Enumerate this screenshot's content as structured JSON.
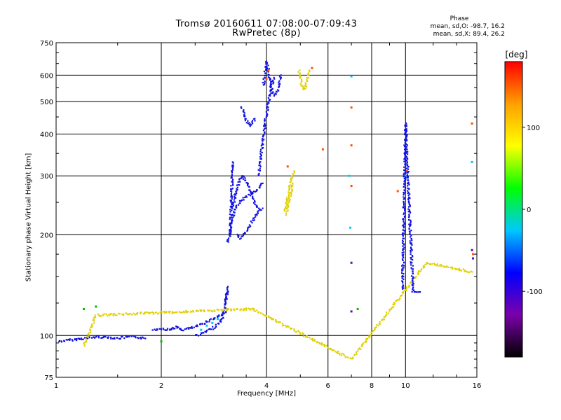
{
  "chart_data": {
    "type": "scatter",
    "title": "Tromsø 20160611 07:08:00-07:09:43",
    "subtitle": "RwPretec (8p)",
    "stats": {
      "header": "Phase",
      "line_o": "mean, sd,O: -98.7, 16.2",
      "line_x": "mean, sd,X:  89.4, 26.2"
    },
    "xlabel": "Frequency [MHz]",
    "ylabel": "Stationary phase Virtual Height [km]",
    "x_scale": "log",
    "y_scale": "log",
    "xlim": [
      1,
      16
    ],
    "ylim": [
      75,
      750
    ],
    "x_ticks": [
      1,
      2,
      4,
      6,
      8,
      10,
      16
    ],
    "x_ticklabels": [
      "1",
      "2",
      "4",
      "6",
      "8",
      "10",
      "16"
    ],
    "y_ticks": [
      75,
      100,
      200,
      300,
      400,
      500,
      600,
      750
    ],
    "y_ticklabels": [
      "75",
      "100",
      "200",
      "300",
      "400",
      "500",
      "600",
      "750"
    ],
    "grid": true,
    "colorbar": {
      "title": "[deg]",
      "range": [
        -180,
        180
      ],
      "ticks": [
        100,
        0,
        -100
      ],
      "ticklabels": [
        "100",
        "0",
        "-100"
      ],
      "colormap": [
        "#000000",
        "#7b00aa",
        "#0000ff",
        "#00c8ff",
        "#00ff00",
        "#ffff00",
        "#ffa000",
        "#ff0000"
      ]
    },
    "series": [
      {
        "color": "#1010e0",
        "segments": [
          {
            "x": [
              1.02,
              1.1,
              1.2,
              1.3,
              1.4,
              1.5,
              1.6,
              1.7,
              1.8
            ],
            "y": [
              96,
              97,
              98,
              99,
              99,
              98,
              99,
              99,
              98
            ]
          },
          {
            "x": [
              1.9,
              2.0,
              2.1,
              2.2,
              2.3,
              2.4,
              2.5,
              2.6,
              2.7,
              2.8,
              2.9,
              3.0,
              3.1
            ],
            "y": [
              104,
              105,
              104,
              106,
              104,
              105,
              106,
              108,
              110,
              112,
              114,
              116,
              120
            ]
          },
          {
            "x": [
              2.5,
              2.6,
              2.7,
              2.8,
              2.9,
              3.0,
              3.05,
              3.1
            ],
            "y": [
              100,
              101,
              103,
              105,
              108,
              112,
              125,
              135
            ]
          },
          {
            "x": [
              3.1,
              3.15,
              3.2,
              3.3,
              3.4,
              3.5,
              3.6,
              3.7,
              3.8,
              3.9
            ],
            "y": [
              190,
              205,
              225,
              245,
              255,
              260,
              265,
              270,
              275,
              285
            ]
          },
          {
            "x": [
              3.2,
              3.25,
              3.3,
              3.4,
              3.5,
              3.6,
              3.7,
              3.8
            ],
            "y": [
              240,
              260,
              280,
              300,
              290,
              270,
              250,
              240
            ]
          },
          {
            "x": [
              3.3,
              3.35,
              3.4,
              3.5,
              3.6,
              3.7,
              3.8,
              3.9
            ],
            "y": [
              200,
              195,
              198,
              205,
              215,
              225,
              235,
              240
            ]
          },
          {
            "x": [
              3.8,
              3.85,
              3.9,
              3.95,
              4.0,
              4.05,
              4.1,
              4.15,
              4.2
            ],
            "y": [
              300,
              340,
              380,
              420,
              460,
              500,
              530,
              560,
              590
            ]
          },
          {
            "x": [
              3.92,
              3.95,
              3.98,
              4.0,
              4.05,
              4.1,
              4.2,
              4.3,
              4.4
            ],
            "y": [
              560,
              600,
              640,
              660,
              620,
              560,
              520,
              540,
              600
            ]
          },
          {
            "x": [
              3.4,
              3.5,
              3.6,
              3.65,
              3.7
            ],
            "y": [
              480,
              440,
              425,
              430,
              445
            ]
          },
          {
            "x": [
              3.15,
              3.2
            ],
            "y": [
              200,
              330
            ]
          },
          {
            "x": [
              3.05,
              3.1
            ],
            "y": [
              125,
              140
            ]
          }
        ]
      },
      {
        "color": "#00c8ff",
        "segments": [
          {
            "x": [
              2.6,
              2.7,
              2.8,
              2.9
            ],
            "y": [
              104,
              107,
              109,
              112
            ]
          },
          {
            "x": [
              6.9,
              6.95,
              7.0
            ],
            "y": [
              300,
              210,
              595
            ]
          },
          {
            "x": [
              10.0,
              15.5
            ],
            "y": [
              300,
              330
            ]
          }
        ]
      },
      {
        "color": "#e0d000",
        "segments": [
          {
            "x": [
              4.5,
              4.55,
              4.6,
              4.65,
              4.7,
              4.75,
              4.8
            ],
            "y": [
              235,
              245,
              260,
              275,
              290,
              300,
              310
            ]
          },
          {
            "x": [
              4.55,
              4.6,
              4.65,
              4.7,
              4.75
            ],
            "y": [
              230,
              240,
              255,
              270,
              285
            ]
          },
          {
            "x": [
              4.95,
              5.0,
              5.05,
              5.1,
              5.15,
              5.2,
              5.25,
              5.3
            ],
            "y": [
              620,
              590,
              560,
              545,
              550,
              565,
              590,
              620
            ]
          },
          {
            "x": [
              1.2,
              1.3,
              3.65,
              7.0,
              11.5,
              15.5
            ],
            "y": [
              93,
              115,
              120,
              85,
              165,
              155
            ]
          }
        ]
      },
      {
        "color": "#ff5000",
        "segments": [
          {
            "x": [
              4.0,
              4.05,
              4.6,
              5.4,
              5.8
            ],
            "y": [
              585,
              620,
              320,
              630,
              360
            ]
          },
          {
            "x": [
              7.0,
              7.0,
              7.0,
              9.5,
              10.1,
              15.5,
              15.6
            ],
            "y": [
              480,
              370,
              280,
              270,
              310,
              430,
              175
            ]
          }
        ]
      },
      {
        "color": "#00c000",
        "segments": [
          {
            "x": [
              1.2,
              1.3,
              2.0,
              7.3
            ],
            "y": [
              120,
              122,
              96,
              120
            ]
          }
        ]
      },
      {
        "color": "#6010b0",
        "segments": [
          {
            "x": [
              7.0,
              7.0,
              15.5,
              15.6
            ],
            "y": [
              165,
              118,
              180,
              170
            ]
          }
        ]
      },
      {
        "color": "#1010e0",
        "segments": [
          {
            "x": [
              9.8,
              10.0,
              10.5,
              11.0
            ],
            "y": [
              137,
              430,
              136,
              135
            ]
          }
        ]
      }
    ]
  }
}
